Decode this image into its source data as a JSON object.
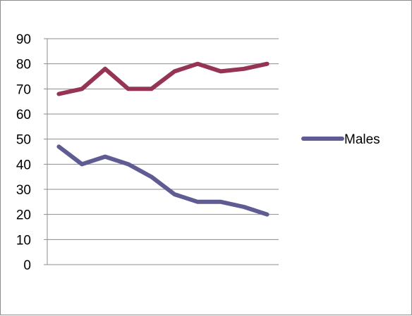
{
  "chart_data": {
    "type": "line",
    "x": [
      1,
      2,
      3,
      4,
      5,
      6,
      7,
      8,
      9,
      10
    ],
    "series": [
      {
        "name": "",
        "color": "#953553",
        "values": [
          68,
          70,
          78,
          70,
          70,
          77,
          80,
          77,
          78,
          80
        ]
      },
      {
        "name": "Males",
        "color": "#5f5c94",
        "values": [
          47,
          40,
          43,
          40,
          35,
          28,
          25,
          25,
          23,
          20
        ]
      }
    ],
    "ylim": [
      0,
      90
    ],
    "yticks": [
      "0",
      "10",
      "20",
      "30",
      "40",
      "50",
      "60",
      "70",
      "80",
      "90"
    ],
    "grid": true,
    "legend": {
      "position": "right",
      "entries": [
        "Males"
      ]
    },
    "title": "",
    "xlabel": "",
    "ylabel": ""
  }
}
